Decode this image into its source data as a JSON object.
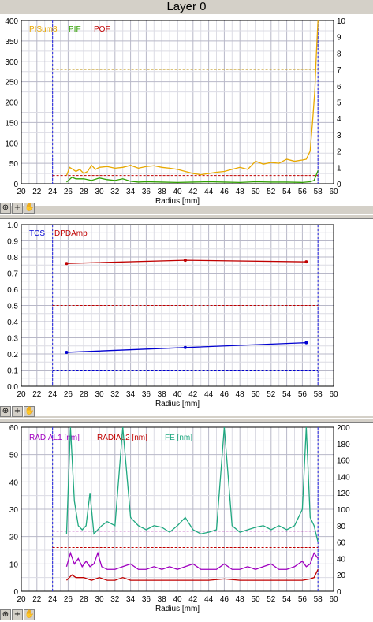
{
  "title": "Layer 0",
  "toolbar": {
    "icons": [
      "zoom-icon",
      "crosshair-icon",
      "hand-icon"
    ],
    "plus_glyph": "+",
    "zoom_glyph": "⊕",
    "hand_glyph": "✋"
  },
  "chart_data": [
    {
      "type": "line",
      "xlabel": "Radius [mm]",
      "xlim": [
        20,
        60
      ],
      "xticks": [
        "20",
        "22",
        "24",
        "26",
        "28",
        "30",
        "32",
        "34",
        "36",
        "38",
        "40",
        "42",
        "44",
        "46",
        "48",
        "50",
        "52",
        "54",
        "56",
        "58",
        "60"
      ],
      "ylim": [
        0,
        400
      ],
      "yticks": [
        "0",
        "50",
        "100",
        "150",
        "200",
        "250",
        "300",
        "350",
        "400"
      ],
      "y2lim": [
        0,
        10
      ],
      "y2ticks": [
        "0",
        "1",
        "2",
        "3",
        "4",
        "5",
        "6",
        "7",
        "8",
        "9",
        "10"
      ],
      "markers_x": [
        24,
        58
      ],
      "thresholds": [
        {
          "axis": "y",
          "value": 280,
          "color": "#c8a030"
        },
        {
          "axis": "y",
          "value": 20,
          "color": "#c00000"
        }
      ],
      "series": [
        {
          "name": "PISum8",
          "color": "#e8a800",
          "axis": "y",
          "x": [
            25.8,
            26.2,
            26.6,
            27,
            27.5,
            28,
            28.5,
            29,
            29.5,
            30,
            31,
            32,
            33,
            34,
            35,
            36,
            37,
            38,
            39,
            40,
            41,
            42,
            43,
            44,
            45,
            46,
            47,
            48,
            49,
            50,
            51,
            52,
            53,
            54,
            55,
            56,
            56.5,
            57,
            57.3,
            57.6,
            57.8,
            58
          ],
          "values": [
            20,
            40,
            35,
            30,
            35,
            25,
            30,
            45,
            35,
            40,
            42,
            38,
            40,
            45,
            38,
            42,
            44,
            40,
            38,
            35,
            30,
            25,
            22,
            25,
            28,
            30,
            35,
            40,
            35,
            55,
            48,
            52,
            50,
            60,
            55,
            58,
            60,
            80,
            150,
            230,
            320,
            400
          ]
        },
        {
          "name": "PIF",
          "color": "#30a000",
          "axis": "y2",
          "x": [
            25.8,
            26.5,
            27,
            28,
            29,
            30,
            31,
            32,
            33,
            34,
            35,
            36,
            38,
            40,
            42,
            44,
            46,
            48,
            50,
            52,
            54,
            56,
            57,
            57.5,
            58
          ],
          "values": [
            0.1,
            0.4,
            0.3,
            0.3,
            0.2,
            0.35,
            0.25,
            0.2,
            0.3,
            0.15,
            0.1,
            0.12,
            0.1,
            0.08,
            0.1,
            0.12,
            0.1,
            0.08,
            0.12,
            0.1,
            0.1,
            0.08,
            0.12,
            0.2,
            0.8
          ]
        },
        {
          "name": "POF",
          "color": "#c00000",
          "axis": "y2",
          "x": [],
          "values": []
        }
      ]
    },
    {
      "type": "line",
      "xlabel": "Radius [mm]",
      "xlim": [
        20,
        60
      ],
      "xticks": [
        "20",
        "22",
        "24",
        "26",
        "28",
        "30",
        "32",
        "34",
        "36",
        "38",
        "40",
        "42",
        "44",
        "46",
        "48",
        "50",
        "52",
        "54",
        "56",
        "58",
        "60"
      ],
      "ylim": [
        0,
        1.0
      ],
      "yticks": [
        "0.0",
        "0.1",
        "0.2",
        "0.3",
        "0.4",
        "0.5",
        "0.6",
        "0.7",
        "0.8",
        "0.9",
        "1.0"
      ],
      "markers_x": [
        24,
        58
      ],
      "thresholds": [
        {
          "axis": "y",
          "value": 0.5,
          "color": "#c00000"
        },
        {
          "axis": "y",
          "value": 0.1,
          "color": "#0000d0"
        }
      ],
      "series": [
        {
          "name": "TCS",
          "color": "#0000d0",
          "axis": "y",
          "x": [
            25.8,
            41,
            56.5
          ],
          "values": [
            0.21,
            0.24,
            0.27
          ]
        },
        {
          "name": "DPDAmp",
          "color": "#c00000",
          "axis": "y",
          "x": [
            25.8,
            41,
            56.5
          ],
          "values": [
            0.76,
            0.78,
            0.77
          ]
        }
      ]
    },
    {
      "type": "line",
      "xlabel": "Radius [mm]",
      "xlim": [
        20,
        60
      ],
      "xticks": [
        "20",
        "22",
        "24",
        "26",
        "28",
        "30",
        "32",
        "34",
        "36",
        "38",
        "40",
        "42",
        "44",
        "46",
        "48",
        "50",
        "52",
        "54",
        "56",
        "58",
        "60"
      ],
      "ylim": [
        0,
        60
      ],
      "yticks": [
        "0",
        "10",
        "20",
        "30",
        "40",
        "50",
        "60"
      ],
      "y2lim": [
        0,
        200
      ],
      "y2ticks": [
        "0",
        "20",
        "40",
        "60",
        "80",
        "100",
        "120",
        "140",
        "160",
        "180",
        "200"
      ],
      "markers_x": [
        24,
        58
      ],
      "thresholds": [
        {
          "axis": "y",
          "value": 22,
          "color": "#a000a0"
        },
        {
          "axis": "y",
          "value": 16,
          "color": "#c00000"
        }
      ],
      "series": [
        {
          "name": "RADIAL1 [nm]",
          "color": "#a000c0",
          "axis": "y",
          "x": [
            25.8,
            26.3,
            26.8,
            27.3,
            27.8,
            28.3,
            28.8,
            29.3,
            29.8,
            30.3,
            31,
            32,
            33,
            34,
            35,
            36,
            37,
            38,
            39,
            40,
            41,
            42,
            43,
            44,
            45,
            46,
            47,
            48,
            49,
            50,
            51,
            52,
            53,
            54,
            55,
            56,
            56.5,
            57,
            57.5,
            58
          ],
          "values": [
            9,
            14,
            10,
            12,
            9,
            11,
            9,
            10,
            14,
            9,
            8,
            8,
            9,
            10,
            8,
            8,
            9,
            8,
            9,
            8,
            9,
            10,
            8,
            8,
            8,
            10,
            8,
            8,
            9,
            8,
            9,
            10,
            8,
            8,
            9,
            11,
            9,
            10,
            14,
            12
          ]
        },
        {
          "name": "RADIAL2 [nm]",
          "color": "#c00000",
          "axis": "y",
          "x": [
            25.8,
            26.5,
            27,
            28,
            29,
            30,
            31,
            32,
            33,
            34,
            35,
            36,
            38,
            40,
            42,
            44,
            46,
            48,
            50,
            52,
            54,
            56,
            57,
            57.5,
            58
          ],
          "values": [
            4,
            6,
            5,
            5,
            4,
            5,
            4,
            4,
            5,
            4,
            4,
            4,
            4,
            4,
            4,
            4,
            4.5,
            4,
            4,
            4,
            4,
            4,
            4.5,
            5,
            8
          ]
        },
        {
          "name": "FE [nm]",
          "color": "#20a880",
          "axis": "y2",
          "x": [
            25.8,
            26.3,
            26.8,
            27.3,
            27.8,
            28.3,
            28.8,
            29.3,
            29.8,
            30.3,
            31,
            32,
            33,
            34,
            35,
            36,
            37,
            38,
            39,
            40,
            41,
            42,
            43,
            44,
            45,
            46,
            47,
            48,
            49,
            50,
            51,
            52,
            53,
            54,
            55,
            56,
            56.5,
            57,
            57.5,
            58
          ],
          "values": [
            70,
            200,
            110,
            80,
            75,
            80,
            120,
            70,
            75,
            80,
            85,
            80,
            200,
            90,
            80,
            75,
            80,
            78,
            72,
            80,
            90,
            75,
            70,
            72,
            75,
            200,
            80,
            72,
            75,
            78,
            80,
            75,
            80,
            75,
            80,
            100,
            200,
            90,
            80,
            60
          ]
        }
      ]
    }
  ]
}
